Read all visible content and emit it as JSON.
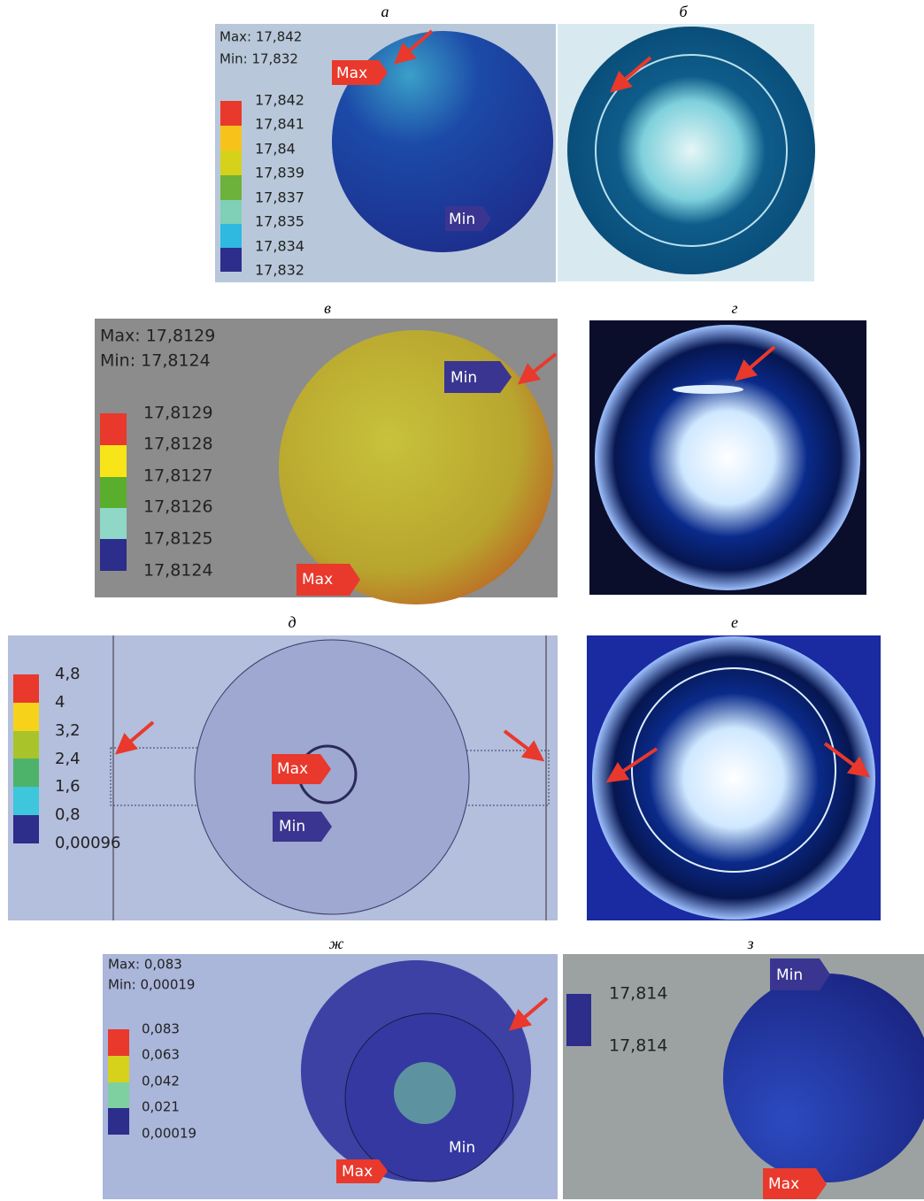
{
  "panels": [
    {
      "label": "а",
      "max_text": "Max: 17,842",
      "min_text": "Min: 17,832",
      "legend": [
        "17,842",
        "17,841",
        "17,84",
        "17,839",
        "17,837",
        "17,835",
        "17,834",
        "17,832"
      ],
      "markers": [
        "Max",
        "Min"
      ]
    },
    {
      "label": "б"
    },
    {
      "label": "в",
      "max_text": "Max: 17,8129",
      "min_text": "Min: 17,8124",
      "legend": [
        "17,8129",
        "17,8128",
        "17,8127",
        "17,8126",
        "17,8125",
        "17,8124"
      ],
      "markers": [
        "Min",
        "Max"
      ]
    },
    {
      "label": "г"
    },
    {
      "label": "д",
      "legend": [
        "4,8",
        "4",
        "3,2",
        "2,4",
        "1,6",
        "0,8",
        "0,00096"
      ],
      "markers": [
        "Max",
        "Min"
      ]
    },
    {
      "label": "е"
    },
    {
      "label": "ж",
      "max_text": "Max: 0,083",
      "min_text": "Min: 0,00019",
      "legend": [
        "0,083",
        "0,063",
        "0,042",
        "0,021",
        "0,00019"
      ],
      "markers": [
        "Max",
        "Min"
      ]
    },
    {
      "label": "з",
      "legend": [
        "17,814",
        "17,814"
      ],
      "markers": [
        "Min",
        "Max"
      ]
    }
  ]
}
